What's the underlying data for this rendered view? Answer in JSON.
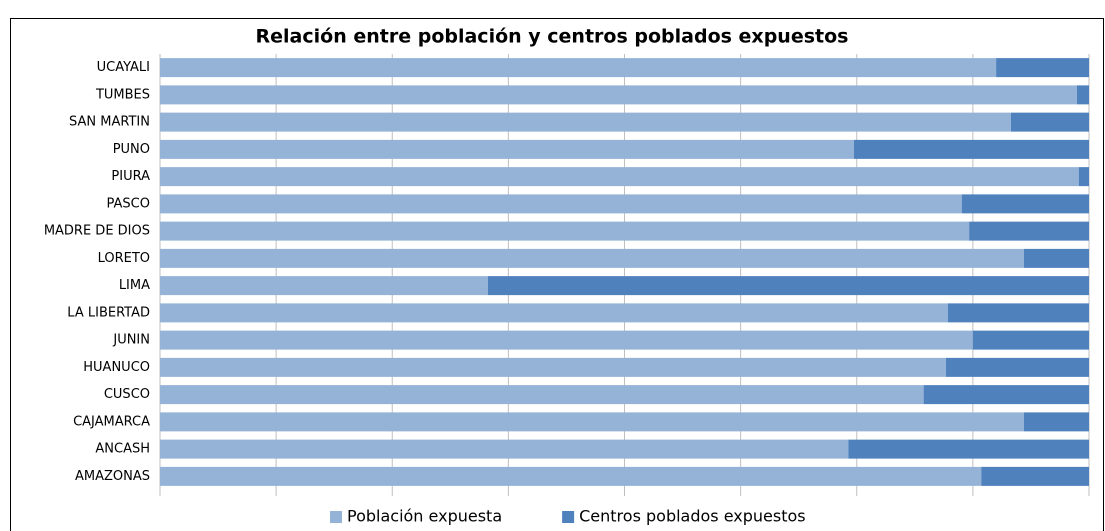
{
  "chart_data": {
    "type": "stacked-bar-horizontal",
    "title": "Relación entre población y centros poblados expuestos",
    "categories": [
      "UCAYALI",
      "TUMBES",
      "SAN MARTIN",
      "PUNO",
      "PIURA",
      "PASCO",
      "MADRE DE DIOS",
      "LORETO",
      "LIMA",
      "LA LIBERTAD",
      "JUNIN",
      "HUANUCO",
      "CUSCO",
      "CAJAMARCA",
      "ANCASH",
      "AMAZONAS"
    ],
    "series": [
      {
        "name": "Población expuesta",
        "color": "#95b3d7",
        "values": [
          90,
          98.7,
          91.6,
          74.7,
          98.9,
          86.3,
          87.1,
          93,
          35.3,
          84.8,
          87.5,
          84.6,
          82.2,
          93,
          74.1,
          88.4
        ]
      },
      {
        "name": "Centros poblados expuestos",
        "color": "#4f81bd",
        "values": [
          10,
          1.3,
          8.4,
          25.3,
          1.1,
          13.7,
          12.9,
          7,
          64.7,
          15.2,
          12.5,
          15.4,
          17.8,
          7,
          25.9,
          11.6
        ]
      }
    ],
    "xlim": [
      0,
      100
    ],
    "xticks": [
      0,
      12.5,
      25,
      37.5,
      50,
      62.5,
      75,
      87.5,
      100
    ],
    "grid": true,
    "legend": "bottom"
  }
}
